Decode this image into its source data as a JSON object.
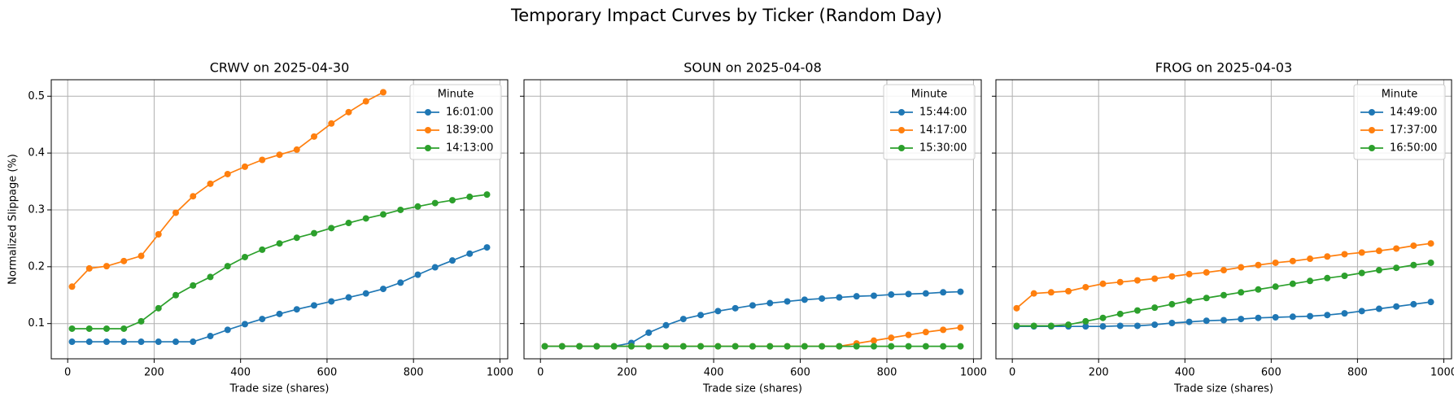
{
  "title": "Temporary Impact Curves by Ticker (Random Day)",
  "chart_data": [
    {
      "type": "line",
      "title": "CRWV on 2025-04-30",
      "xlabel": "Trade size (shares)",
      "ylabel": "Normalized Slippage (%)",
      "legend_title": "Minute",
      "legend": "upper right",
      "grid": true,
      "xlim": [
        -38,
        1018
      ],
      "xticks": [
        0,
        200,
        400,
        600,
        800,
        1000
      ],
      "ylim": [
        0.038,
        0.529
      ],
      "yticks": [
        0.1,
        0.2,
        0.3,
        0.4,
        0.5
      ],
      "x": [
        10,
        50,
        90,
        130,
        170,
        210,
        250,
        290,
        330,
        370,
        410,
        450,
        490,
        530,
        570,
        610,
        650,
        690,
        730,
        770,
        810,
        850,
        890,
        930,
        970
      ],
      "series": [
        {
          "name": "16:01:00",
          "color": "#1f77b4",
          "values": [
            0.068,
            0.068,
            0.068,
            0.068,
            0.068,
            0.068,
            0.068,
            0.068,
            0.078,
            0.089,
            0.099,
            0.108,
            0.117,
            0.125,
            0.132,
            0.139,
            0.146,
            0.153,
            0.161,
            0.172,
            0.186,
            0.199,
            0.211,
            0.223,
            0.234
          ]
        },
        {
          "name": "18:39:00",
          "color": "#ff7f0e",
          "values": [
            0.165,
            0.197,
            0.201,
            0.21,
            0.219,
            0.257,
            0.295,
            0.324,
            0.346,
            0.363,
            0.376,
            0.388,
            0.397,
            0.406,
            0.429,
            0.452,
            0.472,
            0.491,
            0.507,
            null,
            null,
            null,
            null,
            null,
            null
          ]
        },
        {
          "name": "14:13:00",
          "color": "#2ca02c",
          "values": [
            0.091,
            0.091,
            0.091,
            0.091,
            0.104,
            0.127,
            0.15,
            0.167,
            0.182,
            0.201,
            0.217,
            0.23,
            0.241,
            0.251,
            0.259,
            0.268,
            0.277,
            0.285,
            0.292,
            0.3,
            0.306,
            0.312,
            0.317,
            0.323,
            0.327
          ]
        }
      ]
    },
    {
      "type": "line",
      "title": "SOUN on 2025-04-08",
      "xlabel": "Trade size (shares)",
      "sharey": true,
      "legend_title": "Minute",
      "legend": "upper right",
      "grid": true,
      "xlim": [
        -38,
        1018
      ],
      "xticks": [
        0,
        200,
        400,
        600,
        800,
        1000
      ],
      "x": [
        10,
        50,
        90,
        130,
        170,
        210,
        250,
        290,
        330,
        370,
        410,
        450,
        490,
        530,
        570,
        610,
        650,
        690,
        730,
        770,
        810,
        850,
        890,
        930,
        970
      ],
      "series": [
        {
          "name": "15:44:00",
          "color": "#1f77b4",
          "values": [
            0.06,
            0.06,
            0.06,
            0.06,
            0.06,
            0.066,
            0.084,
            0.097,
            0.108,
            0.115,
            0.122,
            0.127,
            0.132,
            0.136,
            0.139,
            0.142,
            0.144,
            0.146,
            0.148,
            0.149,
            0.151,
            0.152,
            0.153,
            0.155,
            0.156
          ]
        },
        {
          "name": "14:17:00",
          "color": "#ff7f0e",
          "values": [
            0.06,
            0.06,
            0.06,
            0.06,
            0.06,
            0.06,
            0.06,
            0.06,
            0.06,
            0.06,
            0.06,
            0.06,
            0.06,
            0.06,
            0.06,
            0.06,
            0.06,
            0.06,
            0.065,
            0.07,
            0.075,
            0.08,
            0.085,
            0.089,
            0.093
          ]
        },
        {
          "name": "15:30:00",
          "color": "#2ca02c",
          "values": [
            0.06,
            0.06,
            0.06,
            0.06,
            0.06,
            0.06,
            0.06,
            0.06,
            0.06,
            0.06,
            0.06,
            0.06,
            0.06,
            0.06,
            0.06,
            0.06,
            0.06,
            0.06,
            0.06,
            0.06,
            0.06,
            0.06,
            0.06,
            0.06,
            0.06
          ]
        }
      ]
    },
    {
      "type": "line",
      "title": "FROG on 2025-04-03",
      "xlabel": "Trade size (shares)",
      "sharey": true,
      "legend_title": "Minute",
      "legend": "upper right",
      "grid": true,
      "xlim": [
        -38,
        1018
      ],
      "xticks": [
        0,
        200,
        400,
        600,
        800,
        1000
      ],
      "x": [
        10,
        50,
        90,
        130,
        170,
        210,
        250,
        290,
        330,
        370,
        410,
        450,
        490,
        530,
        570,
        610,
        650,
        690,
        730,
        770,
        810,
        850,
        890,
        930,
        970
      ],
      "series": [
        {
          "name": "14:49:00",
          "color": "#1f77b4",
          "values": [
            0.095,
            0.095,
            0.095,
            0.095,
            0.095,
            0.095,
            0.096,
            0.096,
            0.098,
            0.101,
            0.103,
            0.105,
            0.106,
            0.108,
            0.11,
            0.111,
            0.112,
            0.113,
            0.115,
            0.118,
            0.122,
            0.126,
            0.13,
            0.134,
            0.138
          ]
        },
        {
          "name": "17:37:00",
          "color": "#ff7f0e",
          "values": [
            0.127,
            0.153,
            0.155,
            0.157,
            0.164,
            0.17,
            0.173,
            0.176,
            0.179,
            0.183,
            0.187,
            0.19,
            0.194,
            0.199,
            0.203,
            0.207,
            0.21,
            0.214,
            0.218,
            0.222,
            0.225,
            0.228,
            0.232,
            0.237,
            0.241
          ]
        },
        {
          "name": "16:50:00",
          "color": "#2ca02c",
          "values": [
            0.096,
            0.096,
            0.096,
            0.098,
            0.104,
            0.11,
            0.117,
            0.123,
            0.128,
            0.134,
            0.14,
            0.145,
            0.15,
            0.155,
            0.16,
            0.165,
            0.17,
            0.175,
            0.18,
            0.184,
            0.189,
            0.194,
            0.198,
            0.203,
            0.207
          ]
        }
      ]
    }
  ]
}
